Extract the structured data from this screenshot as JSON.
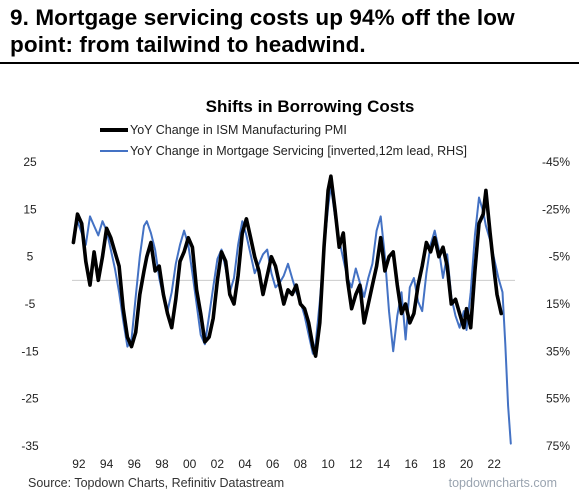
{
  "headline": "9. Mortgage servicing costs up 94% off the low point: from tailwind to headwind.",
  "source": "Source: Topdown Charts, Refinitiv Datastream",
  "watermark": "topdowncharts.com",
  "chart_data": {
    "type": "line",
    "title": "Shifts in Borrowing Costs",
    "legend_position": "top-left",
    "grid": false,
    "xlabel": "",
    "ylabel": "",
    "x_ticks": [
      "92",
      "94",
      "96",
      "98",
      "00",
      "02",
      "04",
      "06",
      "08",
      "10",
      "12",
      "14",
      "16",
      "18",
      "20",
      "22"
    ],
    "x_range": [
      1991.5,
      2023.5
    ],
    "ylim_left": [
      -35,
      25
    ],
    "left_ticks": [
      "25",
      "15",
      "5",
      "-5",
      "-15",
      "-25",
      "-35"
    ],
    "ylim_right_inverted": [
      75,
      -45
    ],
    "right_ticks": [
      "-45%",
      "-25%",
      "-5%",
      "15%",
      "35%",
      "55%",
      "75%"
    ],
    "zero_line_left": 0,
    "series": [
      {
        "name": "YoY Change in ISM Manufacturing PMI",
        "axis": "left",
        "color": "#000000",
        "points": [
          [
            1991.6,
            8
          ],
          [
            1991.9,
            14
          ],
          [
            1992.2,
            12
          ],
          [
            1992.5,
            4
          ],
          [
            1992.8,
            -1
          ],
          [
            1993.1,
            6
          ],
          [
            1993.4,
            0
          ],
          [
            1993.7,
            5
          ],
          [
            1994.0,
            11
          ],
          [
            1994.3,
            9
          ],
          [
            1994.6,
            6
          ],
          [
            1994.9,
            3
          ],
          [
            1995.2,
            -6
          ],
          [
            1995.5,
            -12
          ],
          [
            1995.8,
            -14
          ],
          [
            1996.1,
            -11
          ],
          [
            1996.4,
            -3
          ],
          [
            1996.7,
            2
          ],
          [
            1996.9,
            5
          ],
          [
            1997.2,
            8
          ],
          [
            1997.5,
            2
          ],
          [
            1997.8,
            3
          ],
          [
            1998.1,
            -3
          ],
          [
            1998.4,
            -7
          ],
          [
            1998.7,
            -10
          ],
          [
            1999.0,
            -4
          ],
          [
            1999.3,
            4
          ],
          [
            1999.6,
            6
          ],
          [
            1999.9,
            9
          ],
          [
            2000.2,
            7
          ],
          [
            2000.5,
            -2
          ],
          [
            2000.8,
            -7
          ],
          [
            2001.1,
            -13
          ],
          [
            2001.4,
            -12
          ],
          [
            2001.7,
            -8
          ],
          [
            2002.0,
            0
          ],
          [
            2002.3,
            6
          ],
          [
            2002.6,
            4
          ],
          [
            2002.9,
            -3
          ],
          [
            2003.2,
            -5
          ],
          [
            2003.5,
            1
          ],
          [
            2003.8,
            10
          ],
          [
            2004.1,
            13
          ],
          [
            2004.4,
            9
          ],
          [
            2004.7,
            5
          ],
          [
            2005.0,
            2
          ],
          [
            2005.3,
            -3
          ],
          [
            2005.6,
            1
          ],
          [
            2005.9,
            5
          ],
          [
            2006.2,
            3
          ],
          [
            2006.5,
            -1
          ],
          [
            2006.8,
            -5
          ],
          [
            2007.1,
            -2
          ],
          [
            2007.4,
            -3
          ],
          [
            2007.7,
            -1
          ],
          [
            2008.0,
            -5
          ],
          [
            2008.3,
            -6
          ],
          [
            2008.6,
            -9
          ],
          [
            2008.9,
            -14
          ],
          [
            2009.1,
            -16
          ],
          [
            2009.4,
            -9
          ],
          [
            2009.7,
            7
          ],
          [
            2010.0,
            19
          ],
          [
            2010.2,
            22
          ],
          [
            2010.5,
            15
          ],
          [
            2010.8,
            7
          ],
          [
            2011.1,
            10
          ],
          [
            2011.4,
            0
          ],
          [
            2011.7,
            -6
          ],
          [
            2012.0,
            -3
          ],
          [
            2012.3,
            -1
          ],
          [
            2012.6,
            -9
          ],
          [
            2012.9,
            -5
          ],
          [
            2013.2,
            -1
          ],
          [
            2013.5,
            3
          ],
          [
            2013.8,
            9
          ],
          [
            2014.1,
            2
          ],
          [
            2014.4,
            5
          ],
          [
            2014.7,
            6
          ],
          [
            2015.0,
            -1
          ],
          [
            2015.3,
            -7
          ],
          [
            2015.6,
            -5
          ],
          [
            2015.9,
            -9
          ],
          [
            2016.2,
            -7
          ],
          [
            2016.5,
            -1
          ],
          [
            2016.8,
            3
          ],
          [
            2017.1,
            8
          ],
          [
            2017.4,
            6
          ],
          [
            2017.7,
            9
          ],
          [
            2018.0,
            5
          ],
          [
            2018.3,
            7
          ],
          [
            2018.6,
            3
          ],
          [
            2018.9,
            -5
          ],
          [
            2019.2,
            -4
          ],
          [
            2019.5,
            -7
          ],
          [
            2019.8,
            -10
          ],
          [
            2020.0,
            -6
          ],
          [
            2020.3,
            -10
          ],
          [
            2020.6,
            2
          ],
          [
            2020.9,
            12
          ],
          [
            2021.2,
            14
          ],
          [
            2021.4,
            19
          ],
          [
            2021.7,
            10
          ],
          [
            2022.0,
            2
          ],
          [
            2022.2,
            -3
          ],
          [
            2022.5,
            -7
          ]
        ]
      },
      {
        "name": "YoY Change in Mortgage Servicing [inverted,12m lead, RHS]",
        "axis": "right",
        "color": "#4472c4",
        "points": [
          [
            1991.6,
            -12
          ],
          [
            1991.9,
            -20
          ],
          [
            1992.2,
            -15
          ],
          [
            1992.5,
            -10
          ],
          [
            1992.8,
            -22
          ],
          [
            1993.1,
            -18
          ],
          [
            1993.4,
            -14
          ],
          [
            1993.7,
            -20
          ],
          [
            1994.0,
            -16
          ],
          [
            1994.3,
            -8
          ],
          [
            1994.6,
            0
          ],
          [
            1994.9,
            10
          ],
          [
            1995.2,
            22
          ],
          [
            1995.5,
            33
          ],
          [
            1995.8,
            30
          ],
          [
            1996.1,
            12
          ],
          [
            1996.4,
            -5
          ],
          [
            1996.7,
            -18
          ],
          [
            1996.9,
            -20
          ],
          [
            1997.2,
            -15
          ],
          [
            1997.5,
            -8
          ],
          [
            1997.8,
            4
          ],
          [
            1998.1,
            12
          ],
          [
            1998.4,
            18
          ],
          [
            1998.7,
            10
          ],
          [
            1999.0,
            -2
          ],
          [
            1999.3,
            -10
          ],
          [
            1999.6,
            -16
          ],
          [
            1999.9,
            -10
          ],
          [
            2000.2,
            2
          ],
          [
            2000.5,
            15
          ],
          [
            2000.8,
            28
          ],
          [
            2001.1,
            32
          ],
          [
            2001.4,
            20
          ],
          [
            2001.7,
            8
          ],
          [
            2002.0,
            -4
          ],
          [
            2002.3,
            -8
          ],
          [
            2002.6,
            0
          ],
          [
            2002.9,
            10
          ],
          [
            2003.2,
            4
          ],
          [
            2003.5,
            -10
          ],
          [
            2003.8,
            -20
          ],
          [
            2004.1,
            -14
          ],
          [
            2004.4,
            -6
          ],
          [
            2004.7,
            2
          ],
          [
            2005.0,
            -2
          ],
          [
            2005.3,
            -6
          ],
          [
            2005.6,
            -8
          ],
          [
            2005.9,
            2
          ],
          [
            2006.2,
            8
          ],
          [
            2006.5,
            6
          ],
          [
            2006.8,
            3
          ],
          [
            2007.1,
            -2
          ],
          [
            2007.4,
            4
          ],
          [
            2007.7,
            10
          ],
          [
            2008.0,
            14
          ],
          [
            2008.3,
            20
          ],
          [
            2008.6,
            28
          ],
          [
            2008.9,
            36
          ],
          [
            2009.1,
            32
          ],
          [
            2009.4,
            14
          ],
          [
            2009.7,
            -8
          ],
          [
            2010.0,
            -26
          ],
          [
            2010.2,
            -35
          ],
          [
            2010.5,
            -22
          ],
          [
            2010.8,
            -12
          ],
          [
            2011.1,
            -4
          ],
          [
            2011.4,
            4
          ],
          [
            2011.7,
            8
          ],
          [
            2012.0,
            0
          ],
          [
            2012.3,
            6
          ],
          [
            2012.6,
            12
          ],
          [
            2012.9,
            4
          ],
          [
            2013.2,
            -2
          ],
          [
            2013.5,
            -16
          ],
          [
            2013.8,
            -22
          ],
          [
            2014.1,
            -5
          ],
          [
            2014.4,
            18
          ],
          [
            2014.7,
            35
          ],
          [
            2015.0,
            20
          ],
          [
            2015.3,
            10
          ],
          [
            2015.6,
            30
          ],
          [
            2015.9,
            8
          ],
          [
            2016.2,
            4
          ],
          [
            2016.5,
            14
          ],
          [
            2016.8,
            18
          ],
          [
            2017.1,
            2
          ],
          [
            2017.4,
            -10
          ],
          [
            2017.7,
            -16
          ],
          [
            2018.0,
            -8
          ],
          [
            2018.3,
            4
          ],
          [
            2018.6,
            -6
          ],
          [
            2018.9,
            12
          ],
          [
            2019.2,
            20
          ],
          [
            2019.5,
            25
          ],
          [
            2019.8,
            18
          ],
          [
            2020.0,
            26
          ],
          [
            2020.3,
            10
          ],
          [
            2020.6,
            -14
          ],
          [
            2020.9,
            -30
          ],
          [
            2021.2,
            -24
          ],
          [
            2021.4,
            -18
          ],
          [
            2021.7,
            -12
          ],
          [
            2022.0,
            -4
          ],
          [
            2022.3,
            4
          ],
          [
            2022.6,
            10
          ],
          [
            2022.8,
            32
          ],
          [
            2023.0,
            58
          ],
          [
            2023.2,
            74
          ]
        ]
      }
    ]
  }
}
